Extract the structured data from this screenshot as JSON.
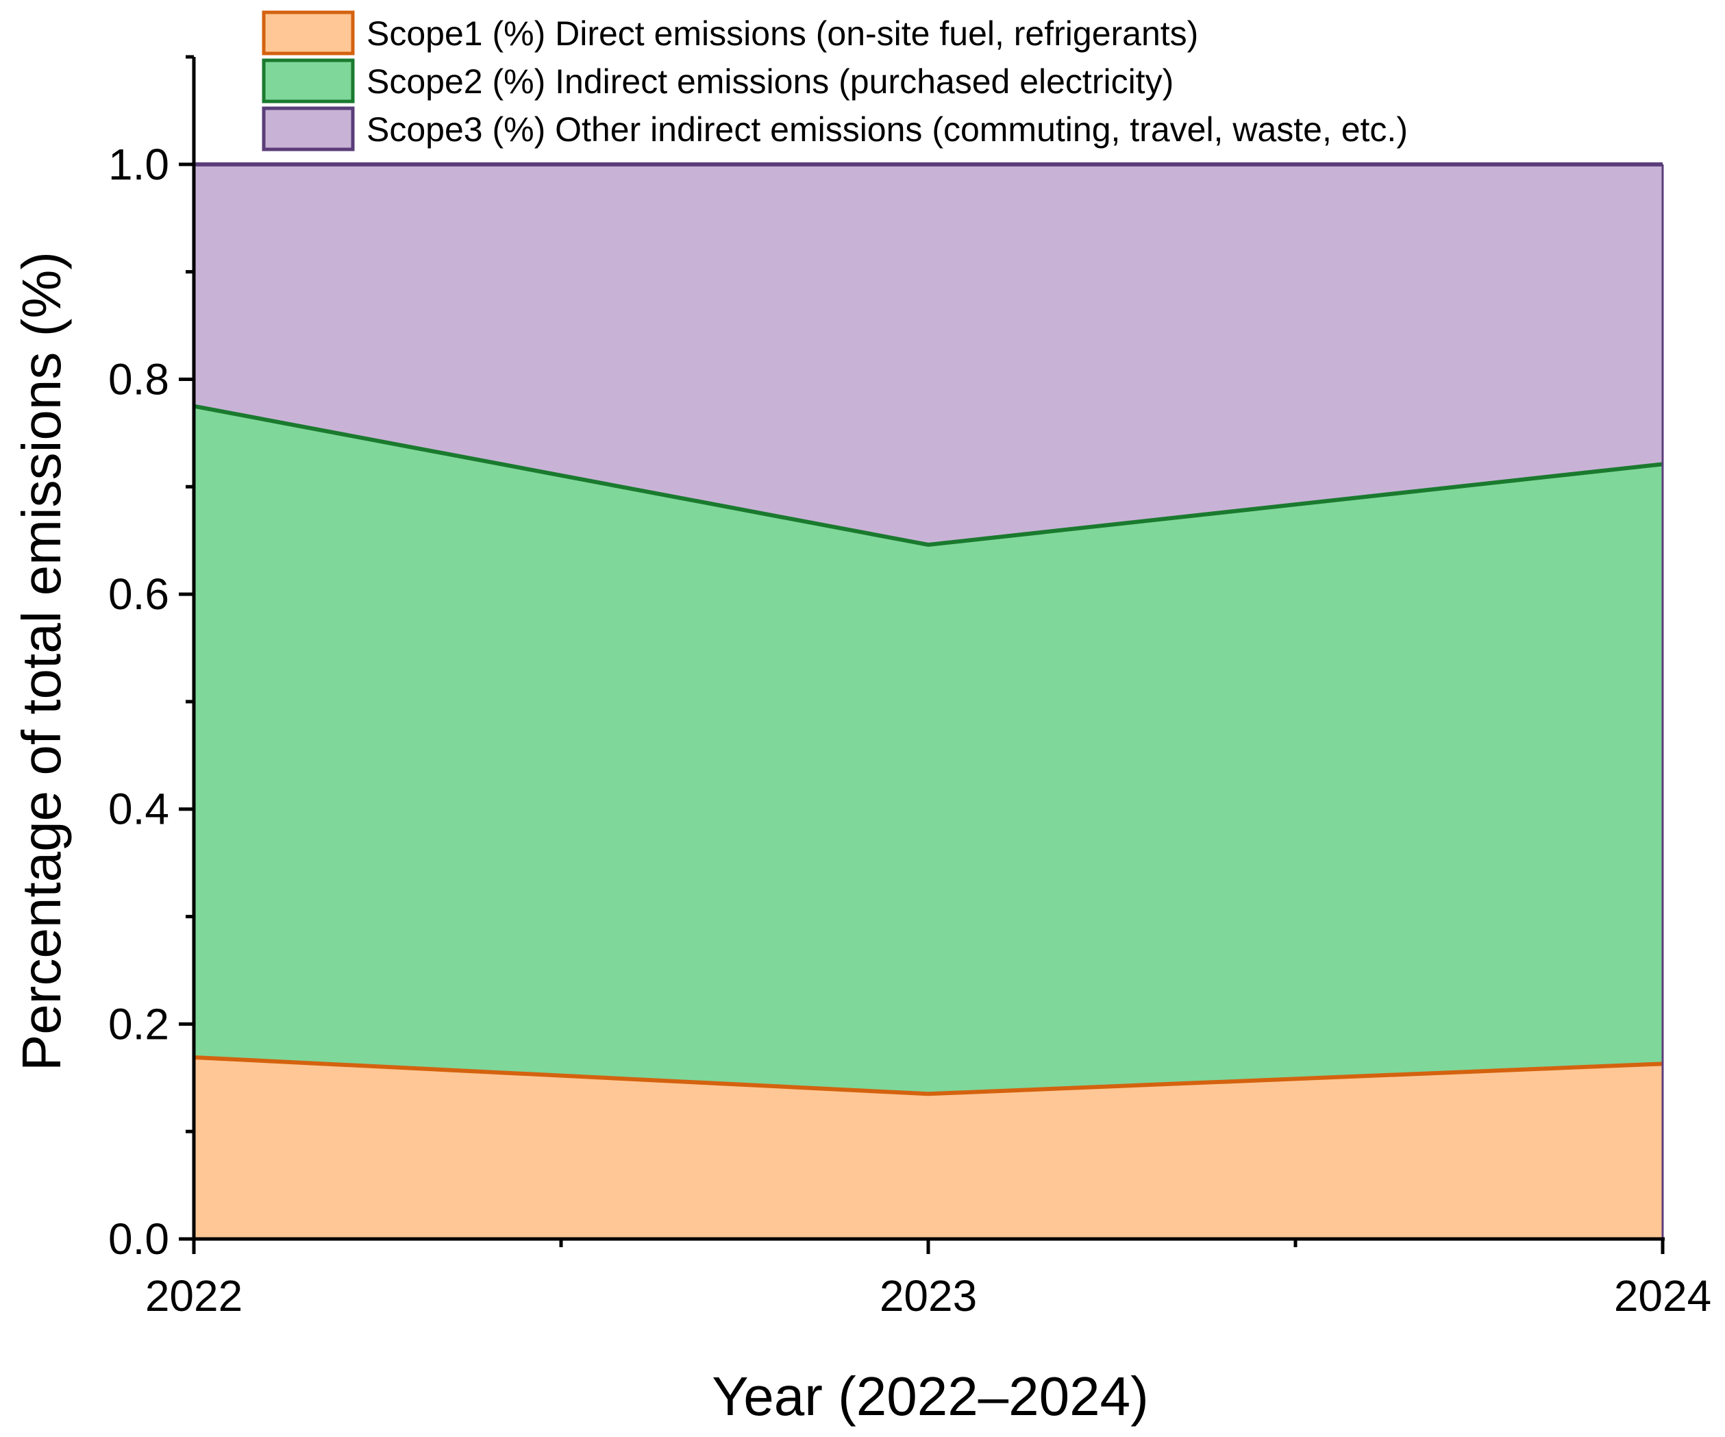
{
  "chart_data": {
    "type": "area",
    "stacked": true,
    "x": [
      2022,
      2023,
      2024
    ],
    "x_tick_labels": [
      "2022",
      "2023",
      "2024"
    ],
    "xlim": [
      2022,
      2024
    ],
    "ylim": [
      0,
      1.1
    ],
    "y_ticks": [
      0.0,
      0.2,
      0.4,
      0.6,
      0.8,
      1.0
    ],
    "y_tick_labels": [
      "0.0",
      "0.2",
      "0.4",
      "0.6",
      "0.8",
      "1.0"
    ],
    "xlabel": "Year (2022–2024)",
    "ylabel": "Percentage of total emissions (%)",
    "legend_position": "top",
    "grid": false,
    "series": [
      {
        "name": "Scope1 (%) Direct emissions (on-site fuel, refrigerants)",
        "values": [
          0.169,
          0.135,
          0.163
        ],
        "fill": "#fec795",
        "stroke": "#d4620f"
      },
      {
        "name": "Scope2 (%) Indirect emissions (purchased electricity)",
        "values": [
          0.606,
          0.511,
          0.558
        ],
        "fill": "#7fd79a",
        "stroke": "#1a7a2e"
      },
      {
        "name": "Scope3 (%) Other indirect emissions (commuting, travel, waste, etc.)",
        "values": [
          0.225,
          0.354,
          0.279
        ],
        "fill": "#c8b3d6",
        "stroke": "#5b3d7a"
      }
    ]
  }
}
